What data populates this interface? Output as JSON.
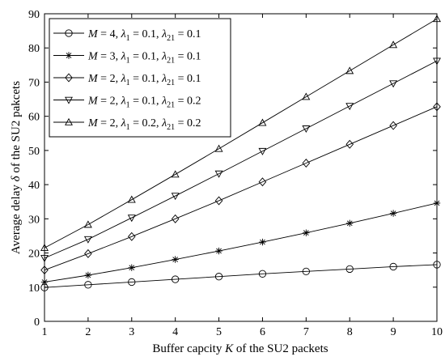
{
  "chart_data": {
    "type": "line",
    "xlabel": {
      "pre": "Buffer capcity ",
      "var": "K",
      "post": " of the SU2 packets"
    },
    "ylabel": {
      "pre": "Average delay ",
      "var": "δ",
      "post": " of the SU2 pakcets"
    },
    "xlim": [
      1,
      10
    ],
    "ylim": [
      0,
      90
    ],
    "xticks": [
      1,
      2,
      3,
      4,
      5,
      6,
      7,
      8,
      9,
      10
    ],
    "yticks": [
      0,
      10,
      20,
      30,
      40,
      50,
      60,
      70,
      80,
      90
    ],
    "grid": false,
    "legend_position": "top-left",
    "x": [
      1,
      2,
      3,
      4,
      5,
      6,
      7,
      8,
      9,
      10
    ],
    "series": [
      {
        "marker": "circle",
        "legend": {
          "m": "4",
          "l1": "0.1",
          "l21": "0.1"
        },
        "values": [
          9.9,
          10.7,
          11.5,
          12.3,
          13.1,
          13.9,
          14.6,
          15.3,
          16.0,
          16.6
        ]
      },
      {
        "marker": "star",
        "legend": {
          "m": "3",
          "l1": "0.1",
          "l21": "0.1"
        },
        "values": [
          11.5,
          13.5,
          15.7,
          18.1,
          20.6,
          23.2,
          25.9,
          28.7,
          31.6,
          34.6
        ]
      },
      {
        "marker": "diamond",
        "legend": {
          "m": "2",
          "l1": "0.1",
          "l21": "0.1"
        },
        "values": [
          15.0,
          19.8,
          24.8,
          30.0,
          35.3,
          40.8,
          46.3,
          51.8,
          57.3,
          62.8
        ]
      },
      {
        "marker": "triangle-down",
        "legend": {
          "m": "2",
          "l1": "0.1",
          "l21": "0.2"
        },
        "values": [
          18.5,
          24.0,
          30.3,
          36.7,
          43.2,
          49.8,
          56.4,
          63.0,
          69.6,
          76.2
        ]
      },
      {
        "marker": "triangle-up",
        "legend": {
          "m": "2",
          "l1": "0.2",
          "l21": "0.2"
        },
        "values": [
          21.5,
          28.3,
          35.6,
          43.0,
          50.5,
          58.1,
          65.7,
          73.3,
          80.9,
          88.5
        ]
      }
    ],
    "legend_symbols": {
      "M": "M",
      "eq": "=",
      "lambda": "λ",
      "sub1": "1",
      "sub21": "21",
      "sep": ","
    }
  }
}
